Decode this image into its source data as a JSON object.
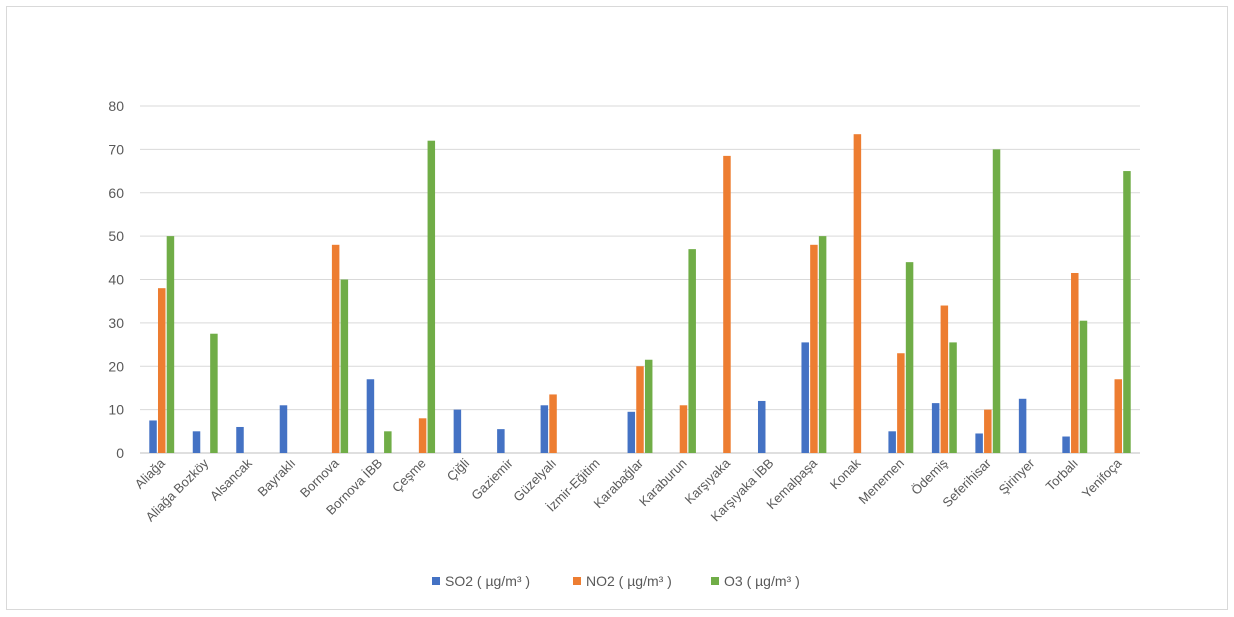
{
  "chart_data": {
    "type": "bar",
    "title": "",
    "xlabel": "",
    "ylabel": "",
    "ylim": [
      0,
      80
    ],
    "yticks": [
      0,
      10,
      20,
      30,
      40,
      50,
      60,
      70,
      80
    ],
    "grid": true,
    "legend_position": "bottom",
    "categories": [
      "Aliağa",
      "Aliağa Bozköy",
      "Alsancak",
      "Bayraklı",
      "Bornova",
      "Bornova İBB",
      "Çeşme",
      "Çiğli",
      "Gaziemir",
      "Güzelyalı",
      "İzmir-Eğitim",
      "Karabağlar",
      "Karaburun",
      "Karşıyaka",
      "Karşıyaka İBB",
      "Kemalpaşa",
      "Konak",
      "Menemen",
      "Ödemiş",
      "Seferihisar",
      "Şirinyer",
      "Torbalı",
      "Yenifoça"
    ],
    "series": [
      {
        "name": "SO2 ( µg/m³ )",
        "color": "#4472c4",
        "values": [
          7.5,
          5,
          6,
          11,
          null,
          17,
          null,
          10,
          5.5,
          11,
          null,
          9.5,
          null,
          null,
          12,
          25.5,
          null,
          5,
          11.5,
          4.5,
          12.5,
          3.8,
          null
        ]
      },
      {
        "name": "NO2 ( µg/m³ )",
        "color": "#ed7d31",
        "values": [
          38,
          null,
          null,
          null,
          48,
          null,
          8,
          null,
          null,
          13.5,
          null,
          20,
          11,
          68.5,
          null,
          48,
          73.5,
          23,
          34,
          10,
          null,
          41.5,
          17
        ]
      },
      {
        "name": "O3 ( µg/m³ )",
        "color": "#70ad47",
        "values": [
          50,
          27.5,
          null,
          null,
          40,
          5,
          72,
          null,
          null,
          null,
          null,
          21.5,
          47,
          null,
          null,
          50,
          null,
          44,
          25.5,
          70,
          null,
          30.5,
          65
        ]
      }
    ]
  }
}
